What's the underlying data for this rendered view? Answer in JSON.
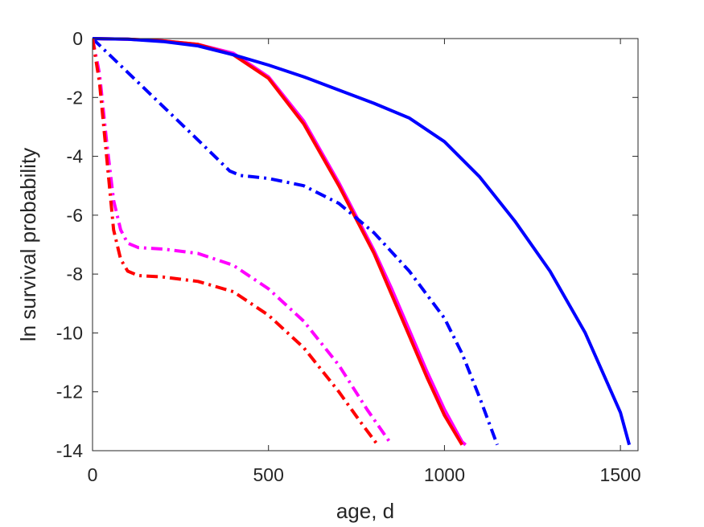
{
  "chart_data": {
    "type": "line",
    "title": "",
    "xlabel": "age, d",
    "ylabel": "ln survival probability",
    "xlim": [
      0,
      1550
    ],
    "ylim": [
      -14,
      0
    ],
    "x_ticks": [
      0,
      500,
      1000,
      1500
    ],
    "y_ticks": [
      0,
      -2,
      -4,
      -6,
      -8,
      -10,
      -12,
      -14
    ],
    "grid": false,
    "series": [
      {
        "color": "#ff00ff",
        "style": "solid",
        "x": [
          0,
          100,
          200,
          300,
          400,
          500,
          600,
          700,
          800,
          850,
          900,
          950,
          1000,
          1050,
          1060
        ],
        "y": [
          0,
          -0.02,
          -0.08,
          -0.2,
          -0.5,
          -1.3,
          -2.8,
          -4.9,
          -7.2,
          -8.5,
          -9.9,
          -11.3,
          -12.6,
          -13.7,
          -13.8
        ]
      },
      {
        "color": "#ff0000",
        "style": "solid",
        "x": [
          0,
          100,
          200,
          300,
          400,
          500,
          600,
          700,
          800,
          850,
          900,
          950,
          1000,
          1050
        ],
        "y": [
          0,
          -0.02,
          -0.08,
          -0.2,
          -0.55,
          -1.35,
          -2.9,
          -5.0,
          -7.3,
          -8.7,
          -10.1,
          -11.5,
          -12.8,
          -13.8
        ]
      },
      {
        "color": "#0000ff",
        "style": "solid",
        "x": [
          0,
          100,
          200,
          300,
          400,
          500,
          600,
          700,
          800,
          900,
          1000,
          1100,
          1200,
          1300,
          1400,
          1500,
          1525
        ],
        "y": [
          0,
          -0.02,
          -0.1,
          -0.25,
          -0.55,
          -0.9,
          -1.3,
          -1.75,
          -2.2,
          -2.7,
          -3.5,
          -4.7,
          -6.2,
          -7.9,
          -10.0,
          -12.7,
          -13.8
        ]
      },
      {
        "color": "#0000ff",
        "style": "dashdot",
        "x": [
          0,
          100,
          200,
          300,
          390,
          420,
          500,
          600,
          700,
          800,
          900,
          1000,
          1050,
          1100,
          1150
        ],
        "y": [
          0,
          -1.15,
          -2.3,
          -3.45,
          -4.5,
          -4.65,
          -4.75,
          -5.0,
          -5.6,
          -6.6,
          -7.9,
          -9.5,
          -10.7,
          -12.2,
          -13.8
        ]
      },
      {
        "color": "#ff00ff",
        "style": "dashdot",
        "x": [
          0,
          20,
          40,
          60,
          80,
          100,
          130,
          200,
          300,
          400,
          500,
          600,
          700,
          780,
          850
        ],
        "y": [
          0,
          -1.2,
          -3.5,
          -5.5,
          -6.5,
          -6.95,
          -7.1,
          -7.15,
          -7.3,
          -7.7,
          -8.5,
          -9.6,
          -11.1,
          -12.6,
          -13.8
        ]
      },
      {
        "color": "#ff0000",
        "style": "dashdot",
        "x": [
          0,
          20,
          40,
          60,
          80,
          100,
          130,
          200,
          300,
          400,
          500,
          600,
          700,
          760,
          810
        ],
        "y": [
          0,
          -1.5,
          -4.0,
          -6.5,
          -7.5,
          -7.9,
          -8.05,
          -8.1,
          -8.25,
          -8.6,
          -9.4,
          -10.5,
          -12.0,
          -13.0,
          -13.8
        ]
      }
    ]
  }
}
